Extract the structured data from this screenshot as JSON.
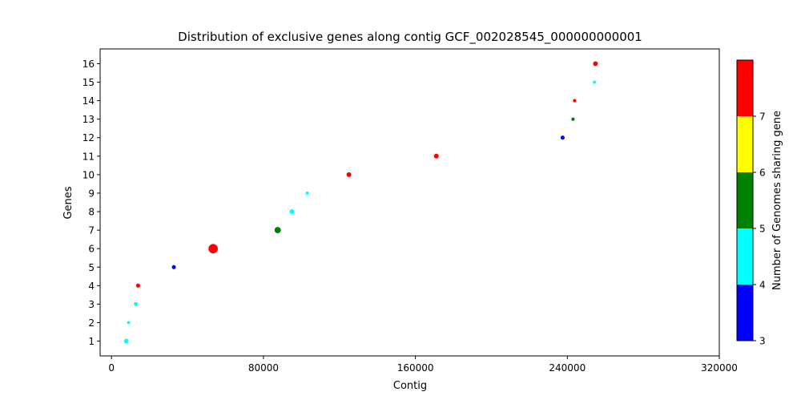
{
  "chart_data": {
    "type": "scatter",
    "title": "Distribution of exclusive genes along contig GCF_002028545_000000000001",
    "xlabel": "Contig",
    "ylabel": "Genes",
    "xlim": [
      -6000,
      320000
    ],
    "ylim": [
      0.2,
      16.8
    ],
    "xticks": [
      0,
      80000,
      160000,
      240000,
      320000
    ],
    "yticks": [
      1,
      2,
      3,
      4,
      5,
      6,
      7,
      8,
      9,
      10,
      11,
      12,
      13,
      14,
      15,
      16
    ],
    "grid": false,
    "points": [
      {
        "x": 7800,
        "y": 1,
        "genomes": 4,
        "size": 2
      },
      {
        "x": 9000,
        "y": 2,
        "genomes": 4,
        "size": 1
      },
      {
        "x": 12800,
        "y": 3,
        "genomes": 4,
        "size": 1.5
      },
      {
        "x": 14000,
        "y": 4,
        "genomes": 7,
        "size": 1.5
      },
      {
        "x": 32800,
        "y": 5,
        "genomes": 3,
        "size": 1.5
      },
      {
        "x": 53500,
        "y": 6,
        "genomes": 7,
        "size": 5
      },
      {
        "x": 87500,
        "y": 7,
        "genomes": 5,
        "size": 3
      },
      {
        "x": 95000,
        "y": 8,
        "genomes": 4,
        "size": 2
      },
      {
        "x": 103000,
        "y": 9,
        "genomes": 4,
        "size": 1
      },
      {
        "x": 125000,
        "y": 10,
        "genomes": 7,
        "size": 2
      },
      {
        "x": 171000,
        "y": 11,
        "genomes": 7,
        "size": 2
      },
      {
        "x": 237500,
        "y": 12,
        "genomes": 3,
        "size": 1.5
      },
      {
        "x": 243000,
        "y": 13,
        "genomes": 5,
        "size": 1
      },
      {
        "x": 243800,
        "y": 14,
        "genomes": 7,
        "size": 1
      },
      {
        "x": 254300,
        "y": 15,
        "genomes": 4,
        "size": 1
      },
      {
        "x": 254800,
        "y": 16,
        "genomes": 7,
        "size": 2
      }
    ],
    "colorbar": {
      "label": "Number of Genomes sharing gene",
      "boundaries": [
        3,
        4,
        5,
        6,
        7,
        8
      ],
      "colors": [
        "#0000ff",
        "#00ffff",
        "#008000",
        "#ffff00",
        "#ff0000"
      ],
      "tick_values": [
        3,
        4,
        5,
        6,
        7
      ]
    }
  }
}
